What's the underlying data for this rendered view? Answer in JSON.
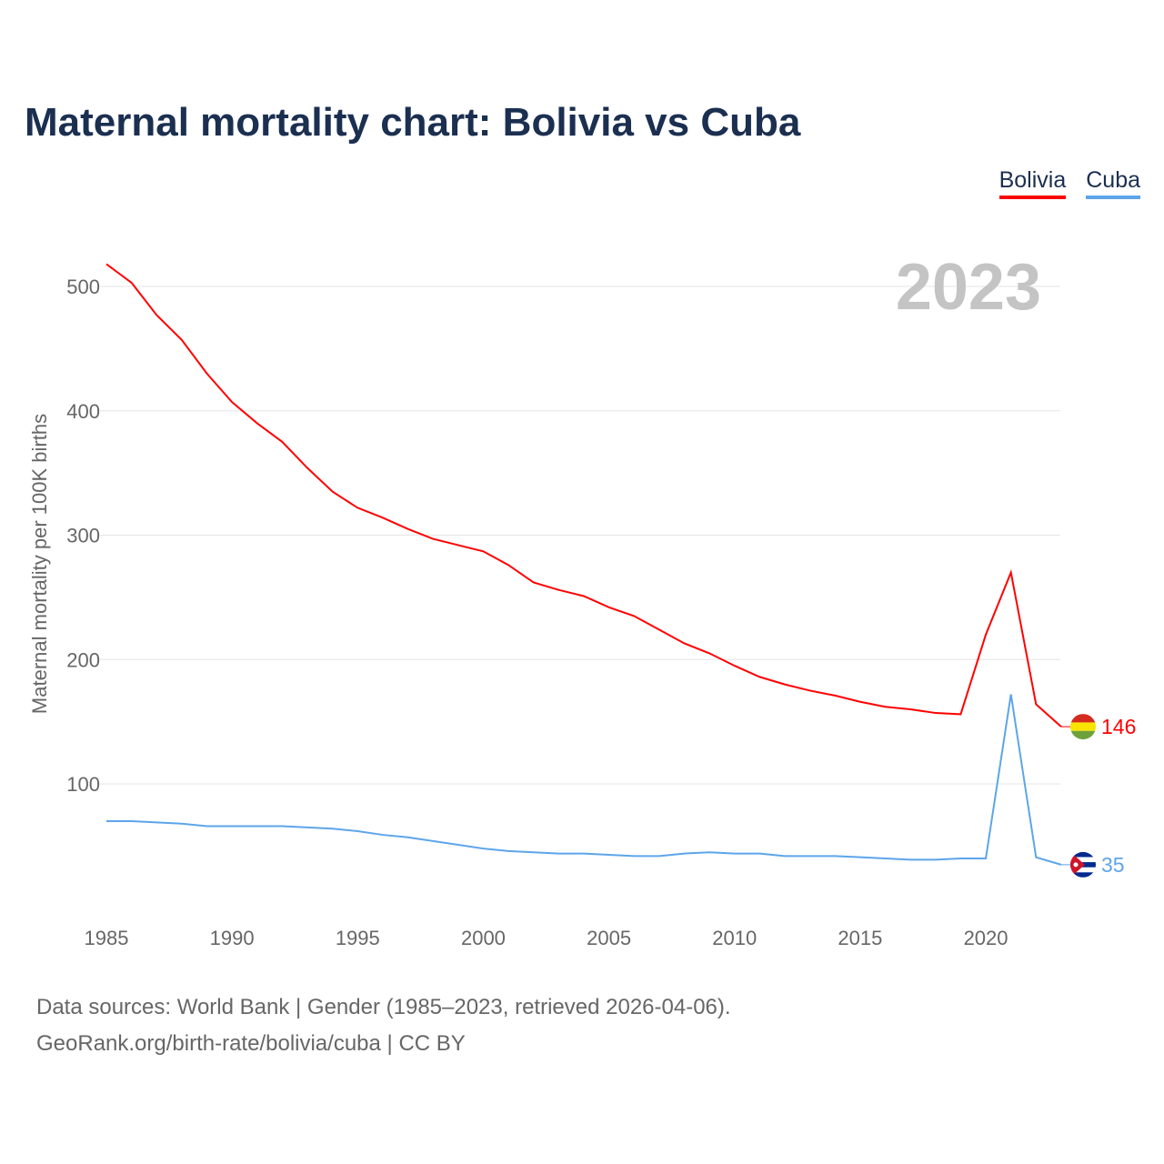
{
  "title": "Maternal mortality chart: Bolivia vs Cuba",
  "year_label": "2023",
  "footer": {
    "line1": "Data sources: World Bank | Gender (1985–2023, retrieved 2026-04-06).",
    "line2": "GeoRank.org/birth-rate/bolivia/cuba | CC BY"
  },
  "chart_data": {
    "type": "line",
    "title": "Maternal mortality chart: Bolivia vs Cuba",
    "xlabel": "",
    "ylabel": "Maternal mortality per 100K births",
    "xlim": [
      1985,
      2023
    ],
    "ylim": [
      0,
      540
    ],
    "xticks": [
      "1985",
      "1990",
      "1995",
      "2000",
      "2005",
      "2010",
      "2015",
      "2020"
    ],
    "yticks": [
      "100",
      "200",
      "300",
      "400",
      "500"
    ],
    "grid": true,
    "legend_position": "top-right",
    "x": [
      1985,
      1986,
      1987,
      1988,
      1989,
      1990,
      1991,
      1992,
      1993,
      1994,
      1995,
      1996,
      1997,
      1998,
      1999,
      2000,
      2001,
      2002,
      2003,
      2004,
      2005,
      2006,
      2007,
      2008,
      2009,
      2010,
      2011,
      2012,
      2013,
      2014,
      2015,
      2016,
      2017,
      2018,
      2019,
      2020,
      2021,
      2022,
      2023
    ],
    "series": [
      {
        "name": "Bolivia",
        "color": "#ff0000",
        "end_label": "146",
        "values": [
          518,
          503,
          477,
          457,
          430,
          407,
          390,
          375,
          354,
          335,
          322,
          314,
          305,
          297,
          292,
          287,
          276,
          262,
          256,
          251,
          242,
          235,
          224,
          213,
          205,
          195,
          186,
          180,
          175,
          171,
          166,
          162,
          160,
          157,
          156,
          220,
          270,
          164,
          146
        ]
      },
      {
        "name": "Cuba",
        "color": "#5da5ea",
        "end_label": "35",
        "values": [
          70,
          70,
          69,
          68,
          66,
          66,
          66,
          66,
          65,
          64,
          62,
          59,
          57,
          54,
          51,
          48,
          46,
          45,
          44,
          44,
          43,
          42,
          42,
          44,
          45,
          44,
          44,
          42,
          42,
          42,
          41,
          40,
          39,
          39,
          40,
          40,
          172,
          41,
          35
        ]
      }
    ]
  }
}
